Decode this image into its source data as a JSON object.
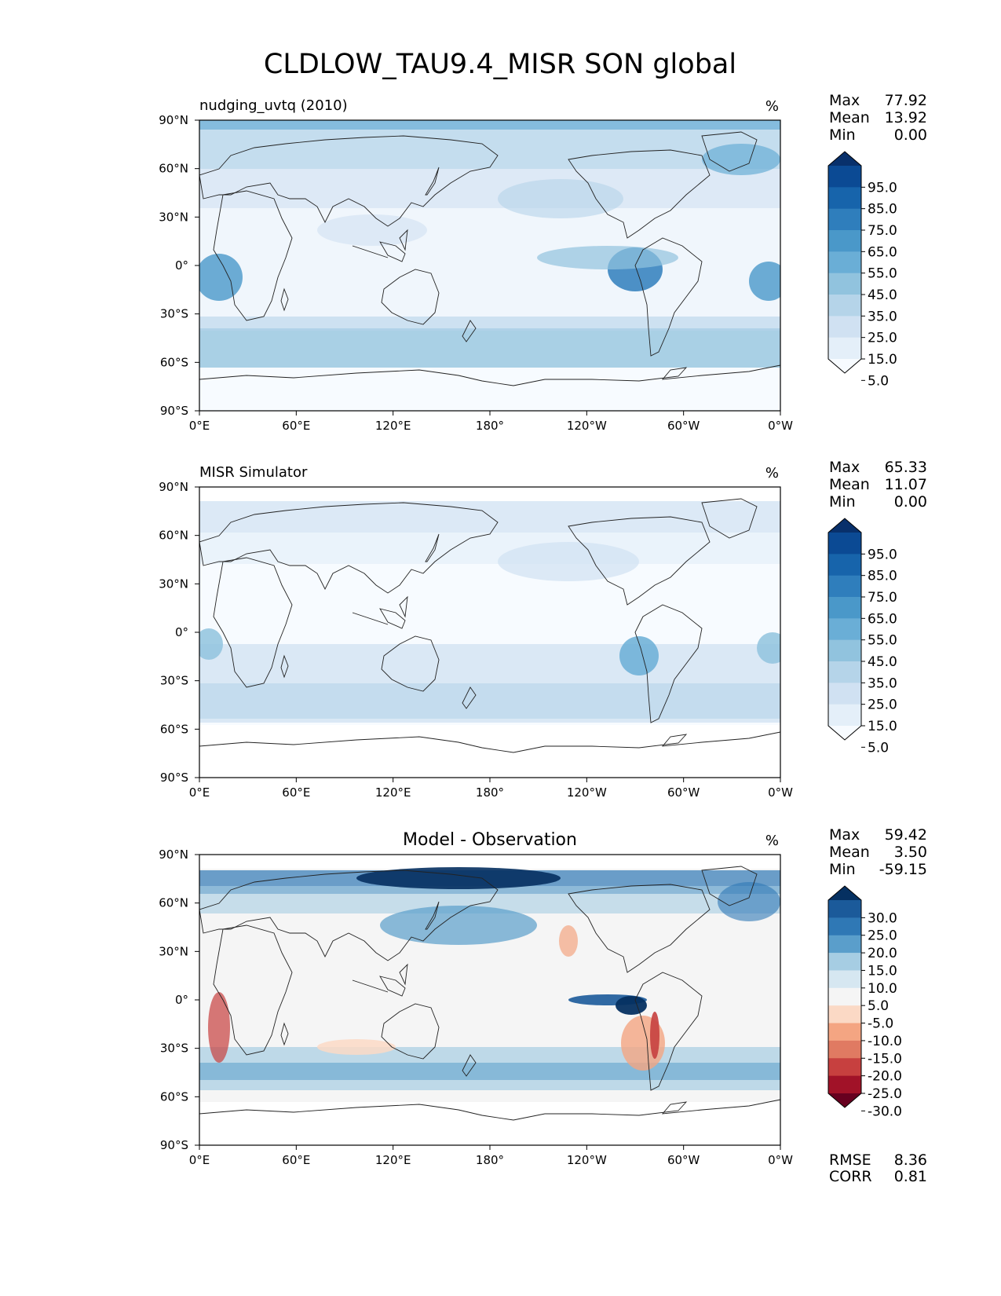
{
  "figure_title": "CLDLOW_TAU9.4_MISR SON global",
  "chart_data": [
    {
      "type": "heatmap",
      "panel_title": "nudging_uvtq (2010)",
      "title_align": "left",
      "units": "%",
      "stats": {
        "Max": "77.92",
        "Mean": "13.92",
        "Min": "0.00"
      },
      "xticks": [
        "0°E",
        "60°E",
        "120°E",
        "180°",
        "120°W",
        "60°W",
        "0°W"
      ],
      "yticks": [
        "90°N",
        "60°N",
        "30°N",
        "0°",
        "30°S",
        "60°S",
        "90°S"
      ],
      "colorbar": {
        "labels": [
          "95.0",
          "85.0",
          "75.0",
          "65.0",
          "55.0",
          "45.0",
          "35.0",
          "25.0",
          "15.0",
          "5.0"
        ],
        "colors": [
          "#08306b",
          "#0b4a94",
          "#1764ab",
          "#2f7ebc",
          "#4a98c9",
          "#6aaed6",
          "#91c3de",
          "#b5d4e9",
          "#d0e1f2",
          "#e4eff9",
          "#f7fbff"
        ]
      }
    },
    {
      "type": "heatmap",
      "panel_title": "MISR Simulator",
      "title_align": "left",
      "units": "%",
      "stats": {
        "Max": "65.33",
        "Mean": "11.07",
        "Min": "0.00"
      },
      "xticks": [
        "0°E",
        "60°E",
        "120°E",
        "180°",
        "120°W",
        "60°W",
        "0°W"
      ],
      "yticks": [
        "90°N",
        "60°N",
        "30°N",
        "0°",
        "30°S",
        "60°S",
        "90°S"
      ],
      "colorbar": {
        "labels": [
          "95.0",
          "85.0",
          "75.0",
          "65.0",
          "55.0",
          "45.0",
          "35.0",
          "25.0",
          "15.0",
          "5.0"
        ],
        "colors": [
          "#08306b",
          "#0b4a94",
          "#1764ab",
          "#2f7ebc",
          "#4a98c9",
          "#6aaed6",
          "#91c3de",
          "#b5d4e9",
          "#d0e1f2",
          "#e4eff9",
          "#f7fbff"
        ]
      }
    },
    {
      "type": "heatmap",
      "panel_title": "Model - Observation",
      "title_align": "center",
      "units": "%",
      "stats": {
        "Max": "59.42",
        "Mean": "3.50",
        "Min": "-59.15"
      },
      "footer_stats": {
        "RMSE": "8.36",
        "CORR": "0.81"
      },
      "xticks": [
        "0°E",
        "60°E",
        "120°E",
        "180°",
        "120°W",
        "60°W",
        "0°W"
      ],
      "yticks": [
        "90°N",
        "60°N",
        "30°N",
        "0°",
        "30°S",
        "60°S",
        "90°S"
      ],
      "colorbar": {
        "labels": [
          "30.0",
          "25.0",
          "20.0",
          "15.0",
          "10.0",
          "5.0",
          "-5.0",
          "-10.0",
          "-15.0",
          "-20.0",
          "-25.0",
          "-30.0"
        ],
        "colors": [
          "#053061",
          "#1b5a9a",
          "#2f78b5",
          "#5a9ecb",
          "#a6cde3",
          "#d6e7f1",
          "#f5f5f5",
          "#fbd9c5",
          "#f4a582",
          "#e07a62",
          "#c7403f",
          "#a11228",
          "#67001f"
        ]
      }
    }
  ]
}
